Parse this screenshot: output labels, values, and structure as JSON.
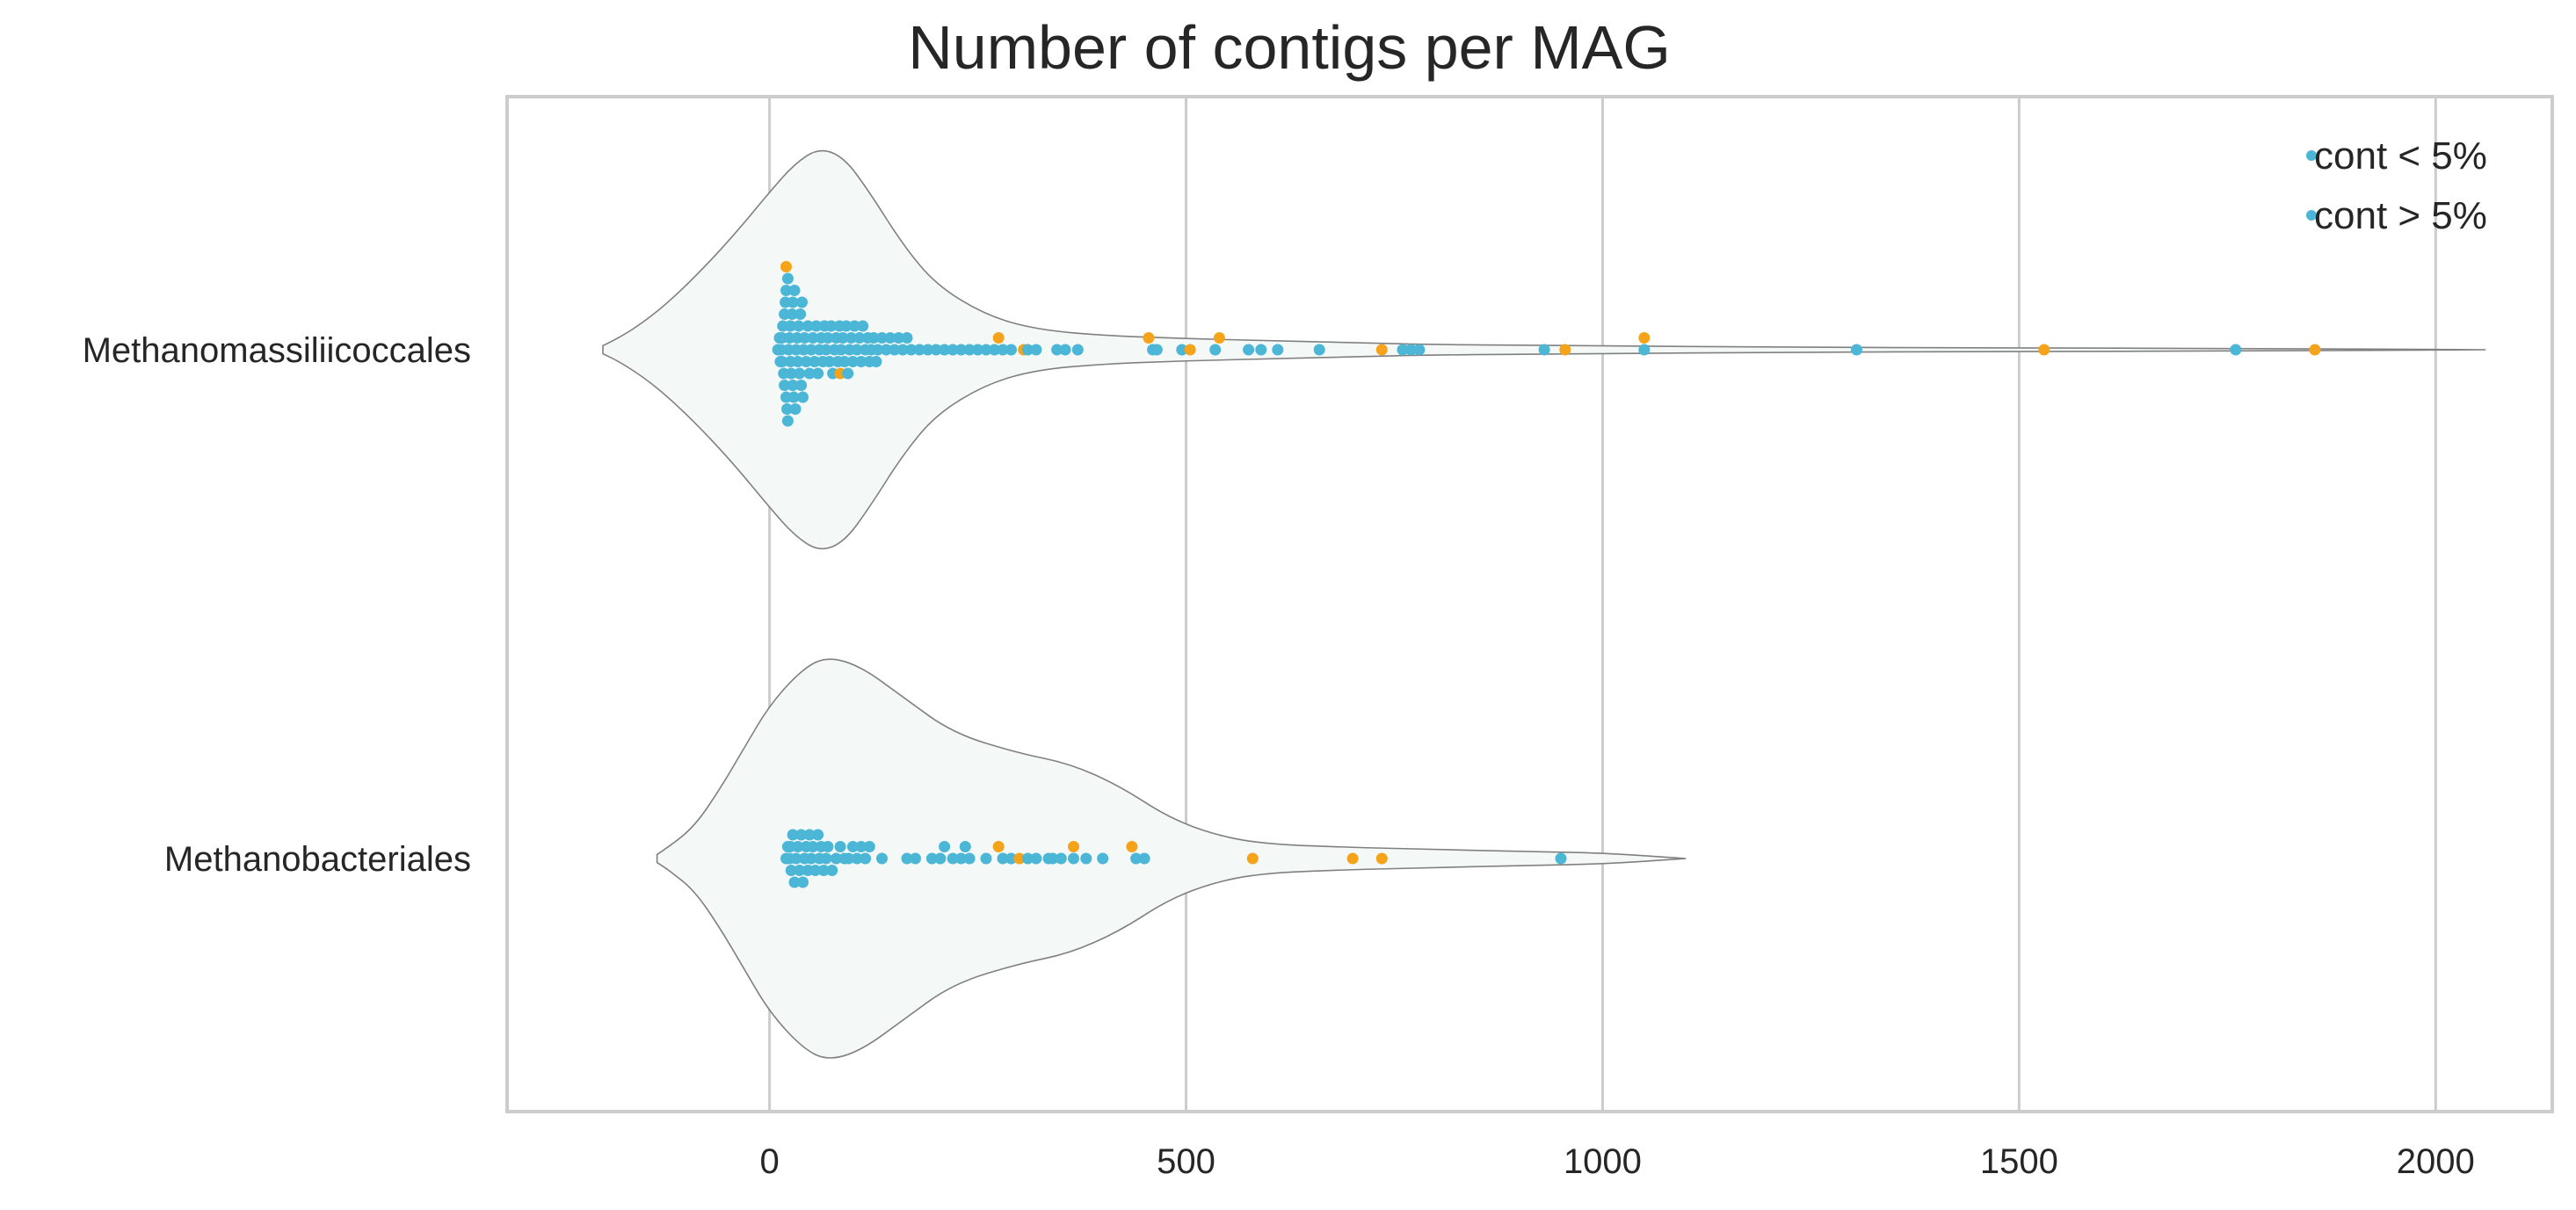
{
  "chart_data": {
    "type": "violin+swarm",
    "title": "Number of contigs per MAG",
    "xlabel": "",
    "ylabel": "",
    "xlim": [
      -315,
      2140
    ],
    "x_ticks": [
      0,
      500,
      1000,
      1500,
      2000
    ],
    "x_tick_labels": [
      "0",
      "500",
      "1000",
      "1500",
      "2000"
    ],
    "grid": "vertical",
    "legend": {
      "placement": "top-right",
      "entries": [
        {
          "label": "cont < 5%",
          "color": "#4bb6d6"
        },
        {
          "label": "cont > 5%",
          "color": "#4bb6d6"
        }
      ]
    },
    "colors": {
      "low_contamination": "#4bb6d6",
      "high_contamination": "#f5a31a",
      "violin_fill": "#f4f8f7",
      "violin_edge": "#808080",
      "grid": "#cccccc",
      "axes_edge": "#cccccc"
    },
    "categories": [
      "Methanomassiliicoccales",
      "Methanobacteriales"
    ],
    "series": [
      {
        "name": "cont < 5%",
        "values": [
          [
            10,
            12,
            13,
            14,
            15,
            15,
            16,
            17,
            18,
            18,
            19,
            20,
            20,
            21,
            22,
            22,
            23,
            24,
            25,
            25,
            26,
            27,
            28,
            28,
            29,
            30,
            31,
            32,
            33,
            34,
            35,
            36,
            37,
            38,
            39,
            40,
            41,
            42,
            44,
            46,
            48,
            50,
            52,
            54,
            56,
            58,
            60,
            62,
            64,
            66,
            68,
            70,
            72,
            74,
            76,
            78,
            80,
            82,
            84,
            86,
            88,
            90,
            92,
            94,
            96,
            98,
            100,
            102,
            105,
            108,
            110,
            112,
            115,
            118,
            120,
            122,
            125,
            128,
            130,
            135,
            140,
            145,
            150,
            155,
            160,
            165,
            170,
            180,
            190,
            200,
            210,
            220,
            230,
            240,
            250,
            260,
            270,
            280,
            290,
            310,
            320,
            345,
            355,
            370,
            460,
            465,
            495,
            535,
            575,
            590,
            610,
            660,
            760,
            770,
            780,
            930,
            1050,
            1305,
            1760
          ],
          [
            20,
            22,
            24,
            25,
            26,
            28,
            30,
            32,
            34,
            36,
            38,
            40,
            42,
            44,
            46,
            48,
            50,
            52,
            55,
            58,
            60,
            62,
            65,
            68,
            70,
            75,
            80,
            85,
            90,
            95,
            100,
            105,
            110,
            115,
            120,
            135,
            165,
            175,
            195,
            205,
            210,
            220,
            230,
            235,
            240,
            260,
            280,
            290,
            310,
            320,
            335,
            340,
            350,
            365,
            380,
            400,
            440,
            450,
            950
          ]
        ]
      },
      {
        "name": "cont > 5%",
        "values": [
          [
            20,
            85,
            275,
            305,
            455,
            505,
            540,
            735,
            955,
            1050,
            1530,
            1855
          ],
          [
            275,
            300,
            365,
            435,
            580,
            700,
            735
          ]
        ]
      }
    ],
    "violins": [
      {
        "category": "Methanomassiliicoccales",
        "profile": [
          [
            -200,
            0.02
          ],
          [
            -180,
            0.06
          ],
          [
            -150,
            0.14
          ],
          [
            -120,
            0.24
          ],
          [
            -80,
            0.4
          ],
          [
            -40,
            0.58
          ],
          [
            0,
            0.78
          ],
          [
            30,
            0.92
          ],
          [
            60,
            1.0
          ],
          [
            90,
            0.95
          ],
          [
            120,
            0.78
          ],
          [
            160,
            0.52
          ],
          [
            200,
            0.32
          ],
          [
            260,
            0.17
          ],
          [
            320,
            0.1
          ],
          [
            400,
            0.07
          ],
          [
            500,
            0.055
          ],
          [
            600,
            0.045
          ],
          [
            700,
            0.035
          ],
          [
            800,
            0.025
          ],
          [
            1000,
            0.02
          ],
          [
            1200,
            0.012
          ],
          [
            1500,
            0.009
          ],
          [
            1800,
            0.006
          ],
          [
            2060,
            0.0
          ]
        ]
      },
      {
        "category": "Methanobacteriales",
        "profile": [
          [
            -135,
            0.02
          ],
          [
            -120,
            0.06
          ],
          [
            -90,
            0.16
          ],
          [
            -60,
            0.34
          ],
          [
            -30,
            0.55
          ],
          [
            0,
            0.76
          ],
          [
            40,
            0.94
          ],
          [
            70,
            1.0
          ],
          [
            110,
            0.95
          ],
          [
            160,
            0.8
          ],
          [
            220,
            0.62
          ],
          [
            300,
            0.52
          ],
          [
            360,
            0.47
          ],
          [
            420,
            0.36
          ],
          [
            480,
            0.2
          ],
          [
            540,
            0.11
          ],
          [
            600,
            0.07
          ],
          [
            700,
            0.055
          ],
          [
            800,
            0.045
          ],
          [
            900,
            0.035
          ],
          [
            1000,
            0.028
          ],
          [
            1100,
            0.0
          ]
        ]
      }
    ]
  }
}
